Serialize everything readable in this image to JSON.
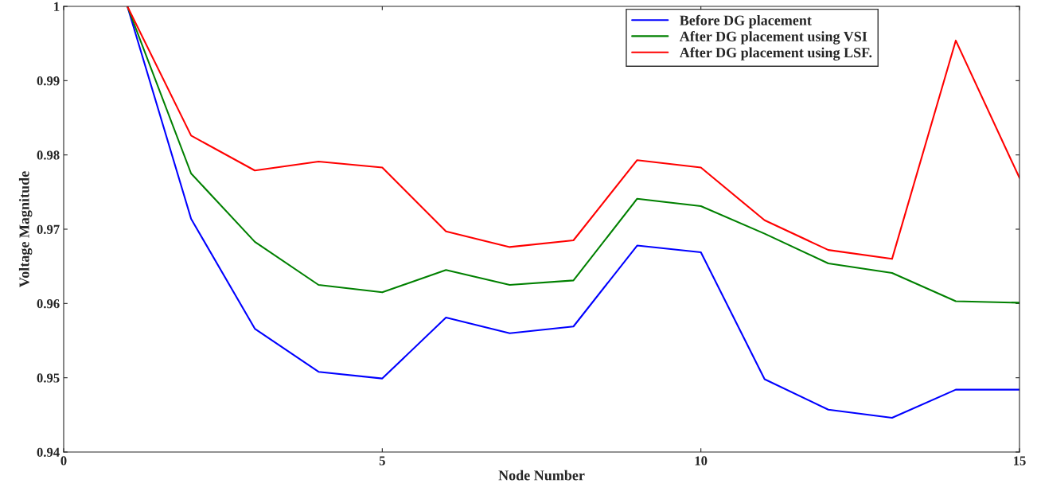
{
  "chart_data": {
    "type": "line",
    "xlabel": "Node Number",
    "ylabel": "Voltage Magnitude",
    "x": [
      1,
      2,
      3,
      4,
      5,
      6,
      7,
      8,
      9,
      10,
      11,
      12,
      13,
      14,
      15
    ],
    "series": [
      {
        "name": "Before DG placement",
        "color": "#0000ff",
        "values": [
          1.0,
          0.9714,
          0.9566,
          0.9508,
          0.9499,
          0.9581,
          0.956,
          0.9569,
          0.9678,
          0.9669,
          0.9498,
          0.9457,
          0.9446,
          0.9484,
          0.9484
        ]
      },
      {
        "name": "After DG placement using VSI",
        "color": "#008000",
        "values": [
          1.0,
          0.9775,
          0.9683,
          0.9625,
          0.9615,
          0.9645,
          0.9625,
          0.9631,
          0.9741,
          0.9731,
          0.9694,
          0.9654,
          0.9641,
          0.9603,
          0.9601
        ]
      },
      {
        "name": "After DG placement using LSF.",
        "color": "#ff0000",
        "values": [
          1.0,
          0.9826,
          0.9779,
          0.9791,
          0.9783,
          0.9697,
          0.9676,
          0.9685,
          0.9793,
          0.9783,
          0.9712,
          0.9672,
          0.966,
          0.9954,
          0.9769
        ]
      }
    ],
    "xlim": [
      0,
      15
    ],
    "xticks": [
      0,
      5,
      10,
      15
    ],
    "ylim": [
      0.94,
      1
    ],
    "yticks": [
      0.94,
      0.95,
      0.96,
      0.97,
      0.98,
      0.99,
      1
    ],
    "legend": "top right",
    "grid": false,
    "line_style": "solid",
    "marker": "none"
  }
}
